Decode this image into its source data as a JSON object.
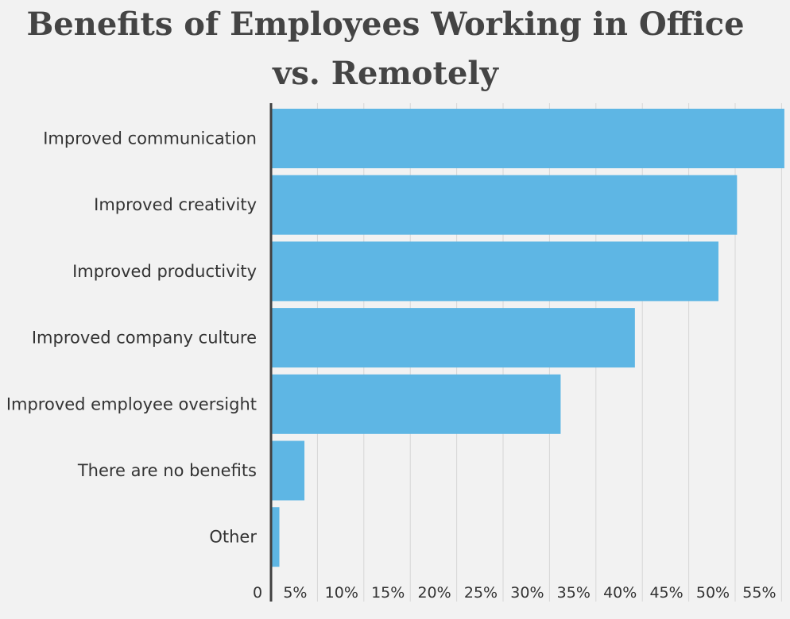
{
  "chart_data": {
    "type": "bar",
    "orientation": "horizontal",
    "title": "Benefits of Employees Working in Office vs. Remotely",
    "categories": [
      "Improved communication",
      "Improved creativity",
      "Improved productivity",
      "Improved company culture",
      "Improved employee oversight",
      "There are no benefits",
      "Other"
    ],
    "values": [
      55.3,
      50.2,
      48.2,
      39.2,
      31.2,
      3.6,
      0.9
    ],
    "xlim": [
      0,
      55
    ],
    "x_ticks": [
      "0",
      "5%",
      "10%",
      "15%",
      "20%",
      "25%",
      "30%",
      "35%",
      "40%",
      "45%",
      "50%",
      "55%"
    ],
    "x_tick_values": [
      0,
      5,
      10,
      15,
      20,
      25,
      30,
      35,
      40,
      45,
      50,
      55
    ],
    "grid": "vertical",
    "legend": "none",
    "colors": {
      "bar": "#5eb6e4",
      "grid": "#d6d6d6",
      "axis": "#404040",
      "background": "#f2f2f2"
    }
  }
}
